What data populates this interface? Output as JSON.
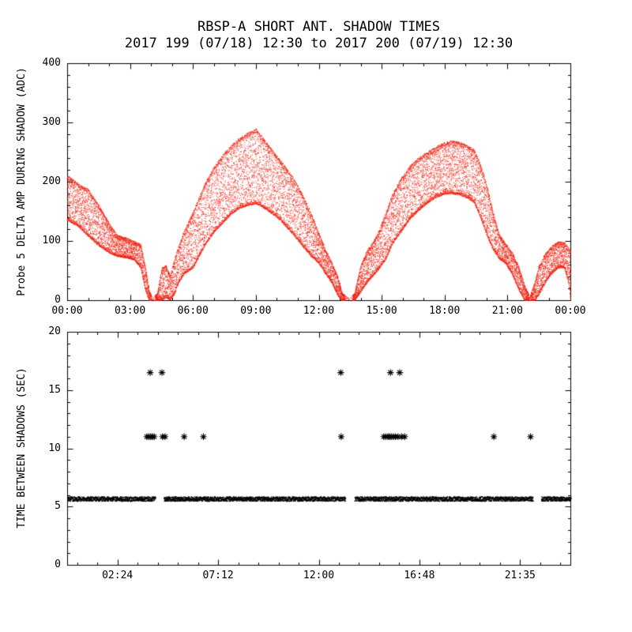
{
  "page": {
    "background": "#ffffff"
  },
  "chart_data": [
    {
      "type": "scatter",
      "title": "RBSP-A SHORT ANT. SHADOW TIMES",
      "subtitle": "2017 199 (07/18) 12:30 to 2017 200 (07/19) 12:30",
      "ylabel": "Probe 5 DELTA AMP DURING SHADOW (ADC)",
      "xlabel": "",
      "xlim": [
        0,
        24
      ],
      "ylim": [
        0,
        400
      ],
      "xticks": [
        0,
        3,
        6,
        9,
        12,
        15,
        18,
        21,
        24
      ],
      "xtick_labels": [
        "00:00",
        "03:00",
        "06:00",
        "09:00",
        "12:00",
        "15:00",
        "18:00",
        "21:00",
        "00:00"
      ],
      "yticks": [
        0,
        100,
        200,
        300,
        400
      ],
      "ytick_labels": [
        "0",
        "100",
        "200",
        "300",
        "400"
      ],
      "grid": false,
      "legend": false,
      "marker": "dot",
      "color": "#ee2211",
      "axis_color": "#000000",
      "envelope_note": "scatter band between lower and upper amplitude envelope, [hour, low_adc, high_adc]",
      "envelope": [
        [
          0,
          135,
          212
        ],
        [
          0.5,
          125,
          198
        ],
        [
          1,
          108,
          188
        ],
        [
          1.5,
          92,
          162
        ],
        [
          2,
          80,
          130
        ],
        [
          2.4,
          74,
          110
        ],
        [
          2.8,
          72,
          106
        ],
        [
          3.2,
          68,
          100
        ],
        [
          3.5,
          55,
          95
        ],
        [
          3.7,
          20,
          62
        ],
        [
          3.9,
          0,
          16
        ],
        [
          4.05,
          0,
          5
        ],
        [
          4.3,
          0,
          12
        ],
        [
          4.5,
          0,
          55
        ],
        [
          4.7,
          5,
          60
        ],
        [
          4.9,
          0,
          42
        ],
        [
          5.1,
          10,
          70
        ],
        [
          5.3,
          30,
          92
        ],
        [
          5.6,
          45,
          120
        ],
        [
          6,
          55,
          150
        ],
        [
          6.3,
          75,
          176
        ],
        [
          6.6,
          95,
          200
        ],
        [
          7,
          115,
          226
        ],
        [
          7.4,
          130,
          246
        ],
        [
          7.8,
          145,
          262
        ],
        [
          8.2,
          155,
          274
        ],
        [
          8.6,
          160,
          283
        ],
        [
          9,
          163,
          290
        ],
        [
          9.3,
          157,
          276
        ],
        [
          9.6,
          150,
          262
        ],
        [
          10,
          140,
          244
        ],
        [
          10.4,
          125,
          226
        ],
        [
          10.8,
          110,
          206
        ],
        [
          11.2,
          92,
          180
        ],
        [
          11.6,
          75,
          150
        ],
        [
          12,
          62,
          114
        ],
        [
          12.3,
          45,
          86
        ],
        [
          12.6,
          30,
          66
        ],
        [
          12.9,
          8,
          40
        ],
        [
          13.1,
          0,
          12
        ],
        [
          13.45,
          0,
          4
        ],
        [
          13.7,
          0,
          12
        ],
        [
          14,
          15,
          60
        ],
        [
          14.3,
          30,
          85
        ],
        [
          14.6,
          42,
          100
        ],
        [
          14.9,
          55,
          122
        ],
        [
          15.2,
          70,
          150
        ],
        [
          15.5,
          95,
          180
        ],
        [
          15.9,
          115,
          206
        ],
        [
          16.3,
          135,
          226
        ],
        [
          16.7,
          150,
          240
        ],
        [
          17.1,
          162,
          250
        ],
        [
          17.5,
          172,
          258
        ],
        [
          17.9,
          178,
          266
        ],
        [
          18.3,
          180,
          270
        ],
        [
          18.7,
          178,
          268
        ],
        [
          19.1,
          172,
          262
        ],
        [
          19.4,
          165,
          255
        ],
        [
          19.7,
          140,
          230
        ],
        [
          20,
          110,
          196
        ],
        [
          20.3,
          85,
          150
        ],
        [
          20.6,
          70,
          112
        ],
        [
          20.9,
          62,
          96
        ],
        [
          21.2,
          45,
          82
        ],
        [
          21.5,
          20,
          60
        ],
        [
          21.8,
          0,
          26
        ],
        [
          22.05,
          0,
          6
        ],
        [
          22.3,
          0,
          32
        ],
        [
          22.5,
          10,
          60
        ],
        [
          22.8,
          30,
          80
        ],
        [
          23.1,
          45,
          92
        ],
        [
          23.4,
          55,
          100
        ],
        [
          23.7,
          55,
          98
        ],
        [
          23.9,
          30,
          90
        ],
        [
          24,
          0,
          85
        ]
      ]
    },
    {
      "type": "scatter",
      "title": "",
      "ylabel": "TIME BETWEEN SHADOWS (SEC)",
      "xlabel": "",
      "xlim": [
        0,
        24
      ],
      "ylim": [
        0,
        20
      ],
      "xticks": [
        2.4,
        7.2,
        12,
        16.8,
        21.6
      ],
      "xtick_labels": [
        "02:24",
        "07:12",
        "12:00",
        "16:48",
        "21:35"
      ],
      "yticks": [
        0,
        5,
        10,
        15,
        20
      ],
      "ytick_labels": [
        "0",
        "5",
        "10",
        "15",
        "20"
      ],
      "grid": false,
      "legend": false,
      "color": "#000000",
      "axis_color": "#000000",
      "band": {
        "note": "dense horizontal band of dots, typical spin-shadow spacing ~5.7 sec",
        "y_low": 5.5,
        "y_high": 5.88,
        "x_start": 0,
        "x_end": 24,
        "gaps": [
          [
            4.2,
            4.6
          ],
          [
            13.25,
            13.7
          ],
          [
            22.2,
            22.6
          ]
        ]
      },
      "outliers": [
        {
          "marker": "asterisk",
          "y": 16.5,
          "x": [
            3.96,
            4.52,
            13.05,
            15.42,
            15.86
          ]
        },
        {
          "marker": "asterisk",
          "y": 11.0,
          "x": [
            3.8,
            3.9,
            3.98,
            4.06,
            4.15,
            4.55,
            4.67,
            5.58,
            6.5,
            13.07,
            15.1,
            15.2,
            15.3,
            15.38,
            15.46,
            15.55,
            15.65,
            15.78,
            15.95,
            16.1,
            20.35,
            22.1
          ]
        }
      ]
    }
  ]
}
